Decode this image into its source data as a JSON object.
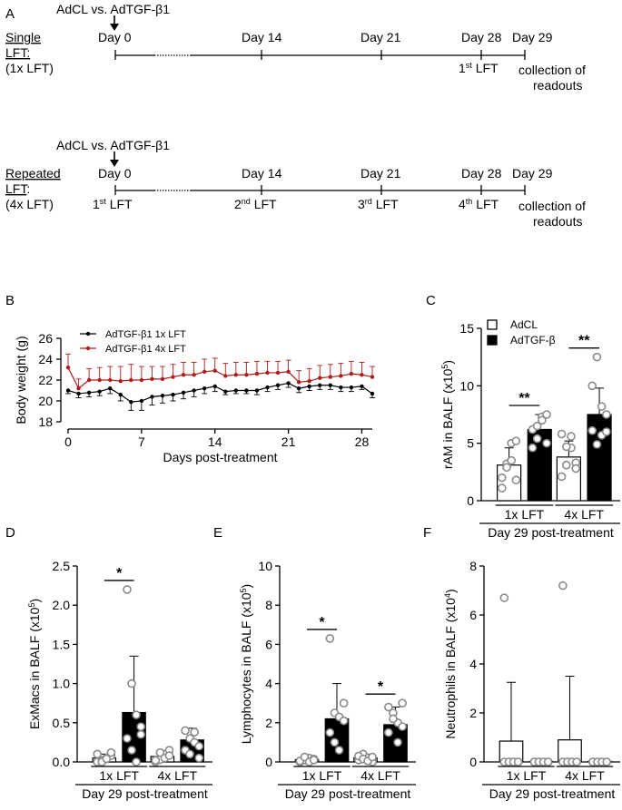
{
  "panel_letters": {
    "a": "A",
    "b": "B",
    "c": "C",
    "d": "D",
    "e": "E",
    "f": "F"
  },
  "timeline": {
    "single": {
      "title_line1": "Single",
      "title_line2": "LFT:",
      "title_line3": "(1x LFT)",
      "top_label": "AdCL vs. AdTGF-β1",
      "days": [
        "Day 0",
        "Day 14",
        "Day 21",
        "Day 28",
        "Day 29"
      ],
      "lft_marks": [
        {
          "base": "1",
          "sup": "st",
          "tail": " LFT"
        }
      ],
      "readout_line1": "collection of",
      "readout_line2": "readouts"
    },
    "repeated": {
      "title_line1": "Repeated",
      "title_line2": "LFT",
      "title_colon": ":",
      "title_line3": "(4x LFT)",
      "top_label": "AdCL vs. AdTGF-β1",
      "days": [
        "Day 0",
        "Day 14",
        "Day 21",
        "Day 28",
        "Day 29"
      ],
      "lft_marks": [
        {
          "base": "1",
          "sup": "st",
          "tail": " LFT"
        },
        {
          "base": "2",
          "sup": "nd",
          "tail": " LFT"
        },
        {
          "base": "3",
          "sup": "rd",
          "tail": " LFT"
        },
        {
          "base": "4",
          "sup": "th",
          "tail": " LFT"
        }
      ],
      "readout_line1": "collection of",
      "readout_line2": "readouts"
    }
  },
  "chart_data": [
    {
      "id": "B",
      "type": "line",
      "xlabel": "Days post-treatment",
      "ylabel": "Body weight (g)",
      "xlim": [
        0,
        29
      ],
      "ylim": [
        18,
        26
      ],
      "xticks": [
        0,
        7,
        14,
        21,
        28
      ],
      "yticks": [
        18,
        20,
        22,
        24,
        26
      ],
      "legend_position": "top-left",
      "series": [
        {
          "name": "AdTGF-β1 1x LFT",
          "color": "#000000",
          "x": [
            0,
            1,
            2,
            3,
            4,
            5,
            6,
            7,
            8,
            9,
            10,
            11,
            12,
            13,
            14,
            15,
            16,
            17,
            18,
            19,
            20,
            21,
            22,
            23,
            24,
            25,
            26,
            27,
            28,
            29
          ],
          "y": [
            21.0,
            20.7,
            20.8,
            20.9,
            21.2,
            20.6,
            19.9,
            20.0,
            20.4,
            20.5,
            20.6,
            20.8,
            21.0,
            21.2,
            21.4,
            20.9,
            21.0,
            21.0,
            21.0,
            21.3,
            21.5,
            21.7,
            21.2,
            21.4,
            21.5,
            21.5,
            21.3,
            21.3,
            21.4,
            20.7
          ],
          "err": [
            0.3,
            0.4,
            0.4,
            0.4,
            0.5,
            0.6,
            0.8,
            0.9,
            0.8,
            0.7,
            0.6,
            0.6,
            0.6,
            0.5,
            0.5,
            0.3,
            0.3,
            0.3,
            0.4,
            0.4,
            0.4,
            0.4,
            0.4,
            0.4,
            0.4,
            0.4,
            0.4,
            0.4,
            0.3,
            0.4
          ]
        },
        {
          "name": "AdTGF-β1 4x LFT",
          "color": "#b01c1c",
          "x": [
            0,
            1,
            2,
            3,
            4,
            5,
            6,
            7,
            8,
            9,
            10,
            11,
            12,
            13,
            14,
            15,
            16,
            17,
            18,
            19,
            20,
            21,
            22,
            23,
            24,
            25,
            26,
            27,
            28,
            29
          ],
          "y": [
            23.2,
            21.2,
            22.0,
            22.0,
            22.0,
            21.9,
            22.0,
            22.0,
            22.1,
            22.1,
            22.3,
            22.5,
            22.5,
            22.8,
            22.9,
            22.4,
            22.5,
            22.5,
            22.6,
            22.7,
            22.7,
            22.8,
            21.8,
            21.9,
            22.2,
            22.3,
            22.4,
            22.6,
            22.5,
            22.3
          ],
          "err": [
            1.3,
            0.9,
            1.1,
            1.2,
            1.3,
            1.4,
            1.5,
            1.3,
            1.2,
            1.2,
            1.2,
            1.2,
            1.2,
            1.2,
            1.2,
            1.2,
            1.2,
            1.2,
            1.2,
            1.1,
            1.1,
            1.1,
            1.1,
            1.2,
            1.2,
            1.2,
            1.2,
            1.2,
            1.2,
            1.0
          ]
        }
      ]
    },
    {
      "id": "C",
      "type": "bar",
      "ylabel_main": "rAM in BALF (x10",
      "ylabel_sup": "5",
      "ylabel_tail": ")",
      "ylim": [
        0,
        15
      ],
      "yticks": [
        0,
        5,
        10,
        15
      ],
      "groups": [
        "1x LFT",
        "4x LFT"
      ],
      "xlabel": "Day 29 post-treatment",
      "legend": [
        "AdCL",
        "AdTGF-β"
      ],
      "legend_position": "top-left",
      "series": [
        {
          "name": "AdCL",
          "fill": "#ffffff",
          "values": [
            3.1,
            3.8
          ],
          "sd": [
            1.5,
            1.4
          ],
          "points": [
            [
              2.0,
              3.2,
              5.0,
              5.2,
              1.1,
              2.9,
              3.5,
              1.8
            ],
            [
              5.8,
              3.1,
              4.6,
              3.3,
              2.1,
              4.7,
              5.6,
              2.8
            ]
          ]
        },
        {
          "name": "AdTGF-β",
          "fill": "#000000",
          "values": [
            6.2,
            7.5
          ],
          "sd": [
            1.3,
            2.3
          ],
          "points": [
            [
              4.6,
              5.4,
              7.3,
              7.5,
              6.2,
              6.5,
              7.0,
              5.0
            ],
            [
              6.1,
              4.9,
              5.7,
              7.5,
              10.0,
              12.5,
              8.2,
              6.0
            ]
          ]
        }
      ],
      "significance": [
        {
          "group": "1x LFT",
          "label": "**"
        },
        {
          "group": "4x LFT",
          "label": "**"
        }
      ]
    },
    {
      "id": "D",
      "type": "bar",
      "ylabel_main": "ExMacs in BALF (x10",
      "ylabel_sup": "5",
      "ylabel_tail": ")",
      "ylim": [
        0,
        2.5
      ],
      "yticks": [
        0.0,
        0.5,
        1.0,
        1.5,
        2.0,
        2.5
      ],
      "ytick_labels": [
        "0.0",
        "0.5",
        "1.0",
        "1.5",
        "2.0",
        "2.5"
      ],
      "groups": [
        "1x LFT",
        "4x LFT"
      ],
      "xlabel": "Day 29 post-treatment",
      "series": [
        {
          "name": "AdCL",
          "fill": "#ffffff",
          "values": [
            0.05,
            0.07
          ],
          "sd": [
            0.05,
            0.07
          ],
          "points": [
            [
              0.0,
              0.02,
              0.05,
              0.08,
              0.1,
              0.0,
              0.04,
              0.12
            ],
            [
              0.0,
              0.03,
              0.1,
              0.15,
              0.02,
              0.12,
              0.05,
              0.08
            ]
          ]
        },
        {
          "name": "AdTGF-β",
          "fill": "#000000",
          "values": [
            0.63,
            0.28
          ],
          "sd": [
            0.72,
            0.15
          ],
          "points": [
            [
              2.2,
              1.0,
              0.6,
              0.45,
              0.3,
              0.15,
              0.0,
              0.35
            ],
            [
              0.4,
              0.3,
              0.25,
              0.2,
              0.15,
              0.1,
              0.38,
              0.05
            ]
          ]
        }
      ],
      "significance": [
        {
          "group": "1x LFT",
          "label": "*"
        }
      ]
    },
    {
      "id": "E",
      "type": "bar",
      "ylabel_main": "Lymphocytes in BALF (x10",
      "ylabel_sup": "5",
      "ylabel_tail": ")",
      "ylim": [
        0,
        10
      ],
      "yticks": [
        0,
        2,
        4,
        6,
        8,
        10
      ],
      "groups": [
        "1x LFT",
        "4x LFT"
      ],
      "xlabel": "Day 29 post-treatment",
      "series": [
        {
          "name": "AdCL",
          "fill": "#ffffff",
          "values": [
            0.12,
            0.2
          ],
          "sd": [
            0.1,
            0.2
          ],
          "points": [
            [
              0.0,
              0.1,
              0.2,
              0.15,
              0.05,
              0.25,
              0.0,
              0.1
            ],
            [
              0.1,
              0.4,
              0.2,
              0.0,
              0.3,
              0.15,
              0.05,
              0.25
            ]
          ]
        },
        {
          "name": "AdTGF-β",
          "fill": "#000000",
          "values": [
            2.2,
            1.9
          ],
          "sd": [
            1.8,
            0.9
          ],
          "points": [
            [
              6.3,
              2.5,
              2.3,
              2.1,
              1.5,
              1.0,
              0.6,
              3.0
            ],
            [
              2.8,
              2.5,
              2.0,
              1.8,
              1.5,
              2.2,
              1.0,
              3.0
            ]
          ]
        }
      ],
      "significance": [
        {
          "group": "1x LFT",
          "label": "*"
        },
        {
          "group": "4x LFT",
          "label": "*"
        }
      ]
    },
    {
      "id": "F",
      "type": "bar",
      "ylabel_main": "Neutrophils in BALF (x10",
      "ylabel_sup": "4",
      "ylabel_tail": ")",
      "ylim": [
        0,
        8
      ],
      "yticks": [
        0,
        2,
        4,
        6,
        8
      ],
      "groups": [
        "1x LFT",
        "4x LFT"
      ],
      "xlabel": "Day 29 post-treatment",
      "series": [
        {
          "name": "AdCL",
          "fill": "#ffffff",
          "values": [
            0.85,
            0.9
          ],
          "sd": [
            2.4,
            2.6
          ],
          "points": [
            [
              6.7,
              0.0,
              0.0,
              0.0,
              0.0,
              0.0,
              0.0,
              0.0
            ],
            [
              7.2,
              0.0,
              0.0,
              0.0,
              0.0,
              0.0,
              0.0,
              0.0
            ]
          ]
        },
        {
          "name": "AdTGF-β",
          "fill": "#000000",
          "values": [
            0.02,
            0.02
          ],
          "sd": [
            0.02,
            0.02
          ],
          "points": [
            [
              0.0,
              0.0,
              0.0,
              0.0,
              0.0,
              0.0,
              0.0,
              0.0
            ],
            [
              0.0,
              0.0,
              0.0,
              0.0,
              0.0,
              0.0,
              0.0,
              0.0
            ]
          ]
        }
      ],
      "significance": []
    }
  ]
}
